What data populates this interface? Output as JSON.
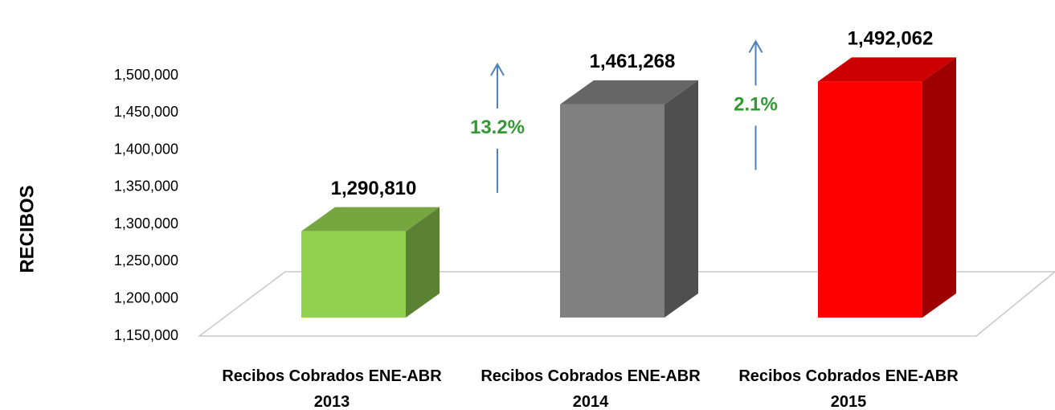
{
  "chart_data": {
    "type": "bar3d",
    "y_label": "RECIBOS",
    "categories": [
      "Recibos Cobrados ENE-ABR 2013",
      "Recibos Cobrados ENE-ABR 2014",
      "Recibos Cobrados ENE-ABR 2015"
    ],
    "values": [
      1290810,
      1461268,
      1492062
    ],
    "value_labels": [
      "1,290,810",
      "1,461,268",
      "1,492,062"
    ],
    "colors": [
      "#92d050",
      "#808080",
      "#ff0000"
    ],
    "annotations": [
      "13.2%",
      "2.1%"
    ],
    "annotation_color": "#339933",
    "ylim": [
      1150000,
      1500000
    ],
    "yticks": [
      {
        "value": 1150000,
        "label": "1,150,000"
      },
      {
        "value": 1200000,
        "label": "1,200,000"
      },
      {
        "value": 1250000,
        "label": "1,250,000"
      },
      {
        "value": 1300000,
        "label": "1,300,000"
      },
      {
        "value": 1350000,
        "label": "1,350,000"
      },
      {
        "value": 1400000,
        "label": "1,400,000"
      },
      {
        "value": 1450000,
        "label": "1,450,000"
      },
      {
        "value": 1500000,
        "label": "1,500,000"
      }
    ]
  }
}
